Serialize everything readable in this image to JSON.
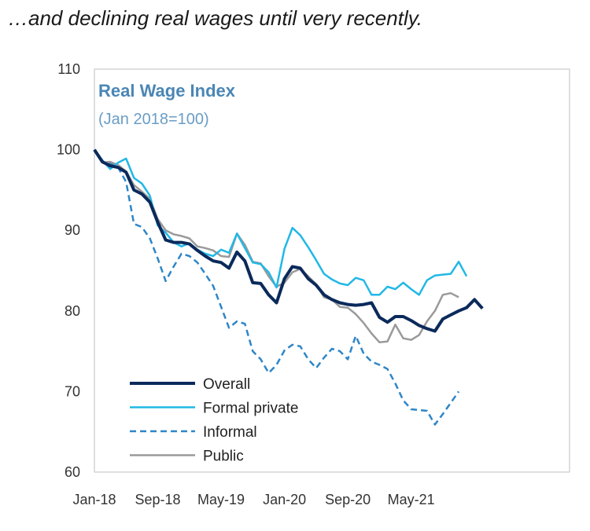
{
  "heading": "…and declining real wages until very recently.",
  "colors": {
    "overall": "#0b2a5b",
    "formal_private": "#21b8e6",
    "informal": "#2e86c7",
    "public": "#9a9a9a",
    "title": "#4a86b5",
    "frame": "#bfbfbf"
  },
  "chart_data": {
    "type": "line",
    "title": "Real Wage Index",
    "subtitle": "(Jan 2018=100)",
    "xlabel": "",
    "ylabel": "",
    "ylim": [
      60,
      110
    ],
    "yticks": [
      60,
      70,
      80,
      90,
      100,
      110
    ],
    "x_start": "Jan-18",
    "x_months": 60,
    "xticks": [
      {
        "label": "Jan-18",
        "index": 0
      },
      {
        "label": "Sep-18",
        "index": 8
      },
      {
        "label": "May-19",
        "index": 16
      },
      {
        "label": "Jan-20",
        "index": 24
      },
      {
        "label": "Sep-20",
        "index": 32
      },
      {
        "label": "May-21",
        "index": 40
      }
    ],
    "grid": false,
    "legend_position": "bottom-left",
    "series": [
      {
        "key": "overall",
        "name": "Overall",
        "style": "solid-thick",
        "values": [
          100,
          98.5,
          98,
          97.8,
          97.2,
          95,
          94.5,
          93.5,
          91,
          88.8,
          88.5,
          88.5,
          88.3,
          87.5,
          86.8,
          86.2,
          86,
          85.3,
          87.3,
          86.2,
          83.5,
          83.4,
          82,
          81,
          84,
          85.5,
          85.3,
          84,
          83.2,
          82,
          81.4,
          81,
          80.8,
          80.7,
          80.8,
          81,
          79.2,
          78.6,
          79.3,
          79.3,
          78.8,
          78.2,
          77.8,
          77.5,
          79,
          79.5,
          80,
          80.4,
          81.4,
          80.3
        ]
      },
      {
        "key": "formal_private",
        "name": "Formal private",
        "style": "solid",
        "values": [
          100,
          98.7,
          97.6,
          98.4,
          98.9,
          96.5,
          95.8,
          94.3,
          90.6,
          89.7,
          88.5,
          88,
          88.4,
          87.6,
          87.1,
          86.8,
          87.6,
          87.2,
          89.6,
          87.8,
          86,
          85.8,
          84.8,
          82.9,
          87.7,
          90.3,
          89.4,
          87.9,
          86.3,
          84.6,
          83.9,
          83.4,
          83.2,
          84.1,
          83.8,
          82,
          82,
          83,
          82.7,
          83.5,
          82.7,
          82,
          83.8,
          84.4,
          84.5,
          84.6,
          86.1,
          84.3
        ]
      },
      {
        "key": "informal",
        "name": "Informal",
        "style": "dashed",
        "values": [
          100,
          98.5,
          98.3,
          97.8,
          96,
          90.8,
          90.4,
          89,
          86.5,
          83.7,
          85.5,
          87.1,
          86.8,
          86,
          84.6,
          83.1,
          80.5,
          77.9,
          78.7,
          78.4,
          75,
          74,
          72.3,
          73.3,
          75.1,
          75.8,
          75.6,
          74,
          72.9,
          74.2,
          75.3,
          75,
          74,
          76.9,
          74.7,
          73.7,
          73.3,
          72.8,
          71,
          68.9,
          67.8,
          67.7,
          67.6,
          65.9,
          67.2,
          68.6,
          70
        ]
      },
      {
        "key": "public",
        "name": "Public",
        "style": "solid-grey",
        "values": [
          100,
          98.4,
          98.5,
          98.1,
          97.3,
          95.6,
          94.8,
          93.9,
          91.4,
          90,
          89.5,
          89.3,
          89,
          88,
          87.8,
          87.5,
          86.8,
          86.7,
          89.6,
          88.2,
          86.1,
          85.9,
          84.3,
          83,
          83.5,
          84.8,
          85.2,
          84.3,
          83.3,
          81.7,
          81.4,
          80.5,
          80.4,
          79.6,
          78.5,
          77.2,
          76.1,
          76.2,
          78.3,
          76.6,
          76.4,
          77,
          78.7,
          80,
          82,
          82.2,
          81.7
        ]
      }
    ]
  }
}
